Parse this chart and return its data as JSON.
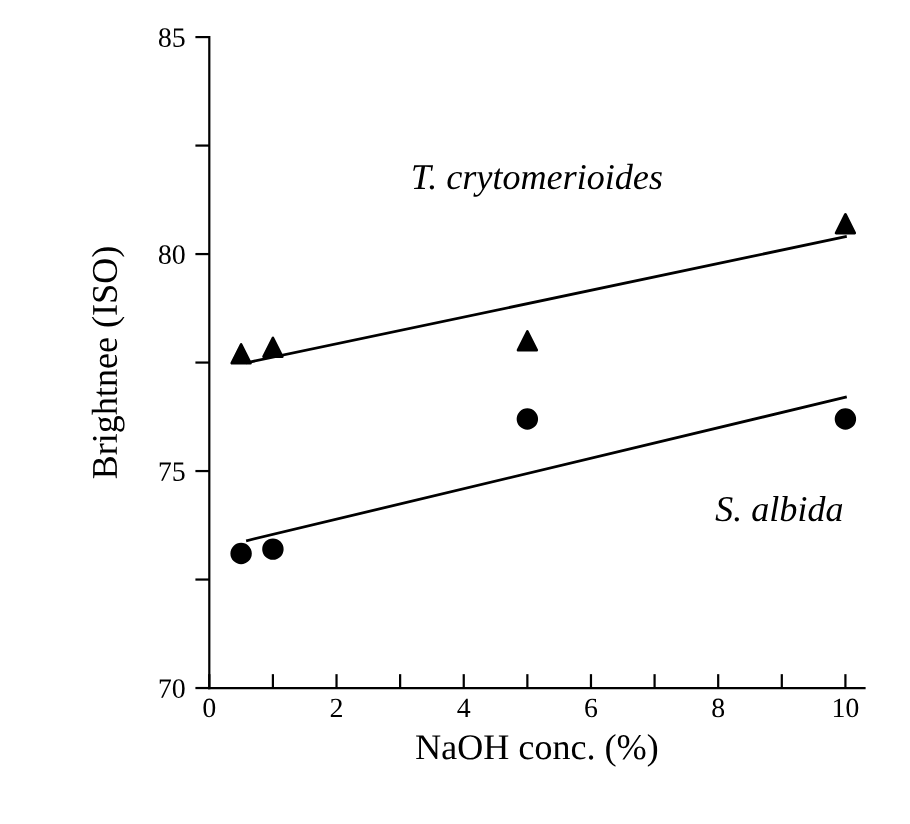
{
  "chart_data": {
    "type": "scatter",
    "xlabel": "NaOH conc. (%)",
    "ylabel": "Brightnee (ISO)",
    "xlim": [
      0,
      10.3
    ],
    "ylim": [
      70,
      85
    ],
    "xticks": [
      0,
      {
        "value": 1,
        "label": null
      },
      2,
      {
        "value": 3,
        "label": null
      },
      4,
      {
        "value": 5,
        "label": null
      },
      6,
      {
        "value": 7,
        "label": null
      },
      8,
      {
        "value": 9,
        "label": null
      },
      10
    ],
    "yticks": [
      70,
      {
        "value": 72.5,
        "label": null
      },
      75,
      {
        "value": 77.5,
        "label": null
      },
      80,
      {
        "value": 82.5,
        "label": null
      },
      85
    ],
    "grid": false,
    "legend": false,
    "series": [
      {
        "marker": "triangle",
        "color": "#000000",
        "x": [
          0.5,
          1,
          5,
          10
        ],
        "values": [
          77.7,
          77.85,
          78.0,
          80.7
        ]
      },
      {
        "marker": "circle",
        "color": "#000000",
        "x": [
          0.5,
          1,
          5,
          10
        ],
        "values": [
          73.1,
          73.2,
          76.2,
          76.2
        ]
      },
      {
        "type": "line",
        "marker": "none",
        "line_style": "solid",
        "color": "#000000",
        "x": [
          0.6,
          10
        ],
        "values": [
          77.5,
          80.4
        ]
      },
      {
        "type": "line",
        "marker": "none",
        "line_style": "solid",
        "color": "#000000",
        "x": [
          0.6,
          10
        ],
        "values": [
          73.4,
          76.7
        ]
      }
    ],
    "annotations": [
      "T. crytomerioides",
      "S. albida"
    ]
  }
}
